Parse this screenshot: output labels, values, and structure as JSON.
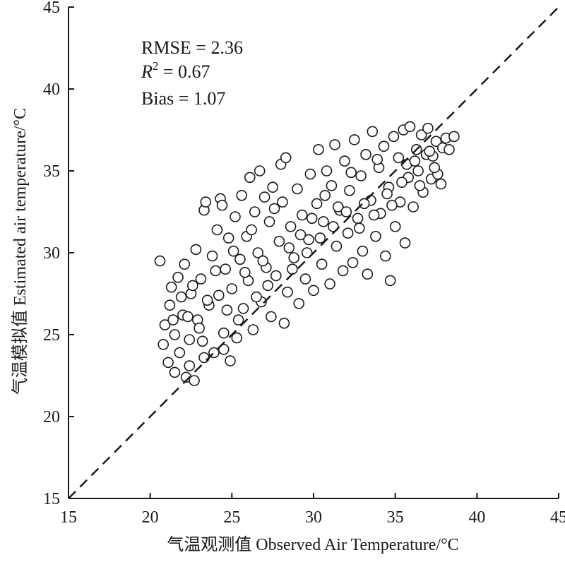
{
  "chart_data": {
    "type": "scatter",
    "title": "",
    "xlabel": "气温观测值 Observed Air Temperature/°C",
    "ylabel": "气温模拟值 Estimated air temperature/°C",
    "xlim": [
      15,
      45
    ],
    "ylim": [
      15,
      45
    ],
    "x_ticks": [
      "15",
      "20",
      "25",
      "30",
      "35",
      "40",
      "45"
    ],
    "y_ticks": [
      "15",
      "20",
      "25",
      "30",
      "35",
      "40",
      "45"
    ],
    "grid": false,
    "reference_line": {
      "style": "dashed",
      "from": [
        15,
        15
      ],
      "to": [
        45,
        45
      ]
    },
    "stats": {
      "rmse": "RMSE = 2.36",
      "r2_symbol": "R",
      "r2_power": "2",
      "r2_value": " = 0.67",
      "bias": "Bias = 1.07"
    },
    "marker": "open-circle",
    "points": [
      [
        20.6,
        29.5
      ],
      [
        20.8,
        24.4
      ],
      [
        20.9,
        25.6
      ],
      [
        21.1,
        23.3
      ],
      [
        21.2,
        26.8
      ],
      [
        21.3,
        27.9
      ],
      [
        21.5,
        22.7
      ],
      [
        21.5,
        25.0
      ],
      [
        21.7,
        28.5
      ],
      [
        21.8,
        23.9
      ],
      [
        22.0,
        26.2
      ],
      [
        22.1,
        29.3
      ],
      [
        22.2,
        22.4
      ],
      [
        22.4,
        24.7
      ],
      [
        22.5,
        27.5
      ],
      [
        22.7,
        22.2
      ],
      [
        22.8,
        30.2
      ],
      [
        22.9,
        25.9
      ],
      [
        23.1,
        28.4
      ],
      [
        23.3,
        23.6
      ],
      [
        23.3,
        32.6
      ],
      [
        23.4,
        33.1
      ],
      [
        23.6,
        26.8
      ],
      [
        23.8,
        29.8
      ],
      [
        23.9,
        23.9
      ],
      [
        24.1,
        31.4
      ],
      [
        24.2,
        27.4
      ],
      [
        24.3,
        33.3
      ],
      [
        24.4,
        32.9
      ],
      [
        24.5,
        25.1
      ],
      [
        24.6,
        29.0
      ],
      [
        24.8,
        30.9
      ],
      [
        24.9,
        23.4
      ],
      [
        25.0,
        27.8
      ],
      [
        25.2,
        32.2
      ],
      [
        25.3,
        24.8
      ],
      [
        25.5,
        29.6
      ],
      [
        25.6,
        33.5
      ],
      [
        25.7,
        26.6
      ],
      [
        25.9,
        31.0
      ],
      [
        26.0,
        28.3
      ],
      [
        26.1,
        34.6
      ],
      [
        26.3,
        25.3
      ],
      [
        26.4,
        32.5
      ],
      [
        26.6,
        30.0
      ],
      [
        26.7,
        35.0
      ],
      [
        26.8,
        27.0
      ],
      [
        27.0,
        33.4
      ],
      [
        27.1,
        29.1
      ],
      [
        27.3,
        31.9
      ],
      [
        27.4,
        26.1
      ],
      [
        27.5,
        34.0
      ],
      [
        27.7,
        28.6
      ],
      [
        27.9,
        30.7
      ],
      [
        28.0,
        35.4
      ],
      [
        28.1,
        33.1
      ],
      [
        28.2,
        25.7
      ],
      [
        28.3,
        35.8
      ],
      [
        28.4,
        27.6
      ],
      [
        28.6,
        31.6
      ],
      [
        28.8,
        29.7
      ],
      [
        29.0,
        33.9
      ],
      [
        29.1,
        26.9
      ],
      [
        29.3,
        32.3
      ],
      [
        29.5,
        28.4
      ],
      [
        29.7,
        30.8
      ],
      [
        29.8,
        34.8
      ],
      [
        30.0,
        27.7
      ],
      [
        30.2,
        33.0
      ],
      [
        30.3,
        36.3
      ],
      [
        30.5,
        29.3
      ],
      [
        30.6,
        31.9
      ],
      [
        30.8,
        35.0
      ],
      [
        31.0,
        28.1
      ],
      [
        31.1,
        34.1
      ],
      [
        31.3,
        36.6
      ],
      [
        31.4,
        30.4
      ],
      [
        31.6,
        32.6
      ],
      [
        31.8,
        28.9
      ],
      [
        31.9,
        35.6
      ],
      [
        32.1,
        31.2
      ],
      [
        32.2,
        33.8
      ],
      [
        32.4,
        29.4
      ],
      [
        32.5,
        36.9
      ],
      [
        32.7,
        32.1
      ],
      [
        32.9,
        34.7
      ],
      [
        33.0,
        30.1
      ],
      [
        33.2,
        36.0
      ],
      [
        33.3,
        28.7
      ],
      [
        33.5,
        33.2
      ],
      [
        33.6,
        37.4
      ],
      [
        33.8,
        31.0
      ],
      [
        34.0,
        35.2
      ],
      [
        34.1,
        32.4
      ],
      [
        34.3,
        36.5
      ],
      [
        34.4,
        29.8
      ],
      [
        34.6,
        34.0
      ],
      [
        34.7,
        28.3
      ],
      [
        34.9,
        37.1
      ],
      [
        35.0,
        31.6
      ],
      [
        35.2,
        35.8
      ],
      [
        35.3,
        33.1
      ],
      [
        35.5,
        37.5
      ],
      [
        35.6,
        30.6
      ],
      [
        35.8,
        34.6
      ],
      [
        35.9,
        37.7
      ],
      [
        36.1,
        32.8
      ],
      [
        36.3,
        36.3
      ],
      [
        36.4,
        35.0
      ],
      [
        36.6,
        37.2
      ],
      [
        36.7,
        33.7
      ],
      [
        36.9,
        36.0
      ],
      [
        37.0,
        37.6
      ],
      [
        37.2,
        34.5
      ],
      [
        37.3,
        35.9
      ],
      [
        37.5,
        36.8
      ],
      [
        37.6,
        34.8
      ],
      [
        37.8,
        34.2
      ],
      [
        37.9,
        36.4
      ],
      [
        38.1,
        37.0
      ],
      [
        38.3,
        36.3
      ],
      [
        38.6,
        37.1
      ],
      [
        22.3,
        26.1
      ],
      [
        22.6,
        28.0
      ],
      [
        23.0,
        25.4
      ],
      [
        23.5,
        27.1
      ],
      [
        24.0,
        28.9
      ],
      [
        24.7,
        26.5
      ],
      [
        25.1,
        30.1
      ],
      [
        25.8,
        28.8
      ],
      [
        26.2,
        31.4
      ],
      [
        26.9,
        29.5
      ],
      [
        27.6,
        32.7
      ],
      [
        28.5,
        30.3
      ],
      [
        29.2,
        31.1
      ],
      [
        29.9,
        32.1
      ],
      [
        30.7,
        33.5
      ],
      [
        31.5,
        32.8
      ],
      [
        32.3,
        34.9
      ],
      [
        33.1,
        33.0
      ],
      [
        33.9,
        35.7
      ],
      [
        34.8,
        32.9
      ],
      [
        35.7,
        35.4
      ],
      [
        36.5,
        34.1
      ],
      [
        37.4,
        35.2
      ],
      [
        21.4,
        25.9
      ],
      [
        21.9,
        27.3
      ],
      [
        22.4,
        23.1
      ],
      [
        23.2,
        24.6
      ],
      [
        24.5,
        24.1
      ],
      [
        25.4,
        25.9
      ],
      [
        26.5,
        27.3
      ],
      [
        27.2,
        28.0
      ],
      [
        28.7,
        29.0
      ],
      [
        29.6,
        30.0
      ],
      [
        30.4,
        30.9
      ],
      [
        31.2,
        31.6
      ],
      [
        32.0,
        32.5
      ],
      [
        32.8,
        31.5
      ],
      [
        33.7,
        32.3
      ],
      [
        34.5,
        33.6
      ],
      [
        35.4,
        34.3
      ],
      [
        36.2,
        35.6
      ],
      [
        37.1,
        36.2
      ]
    ]
  }
}
